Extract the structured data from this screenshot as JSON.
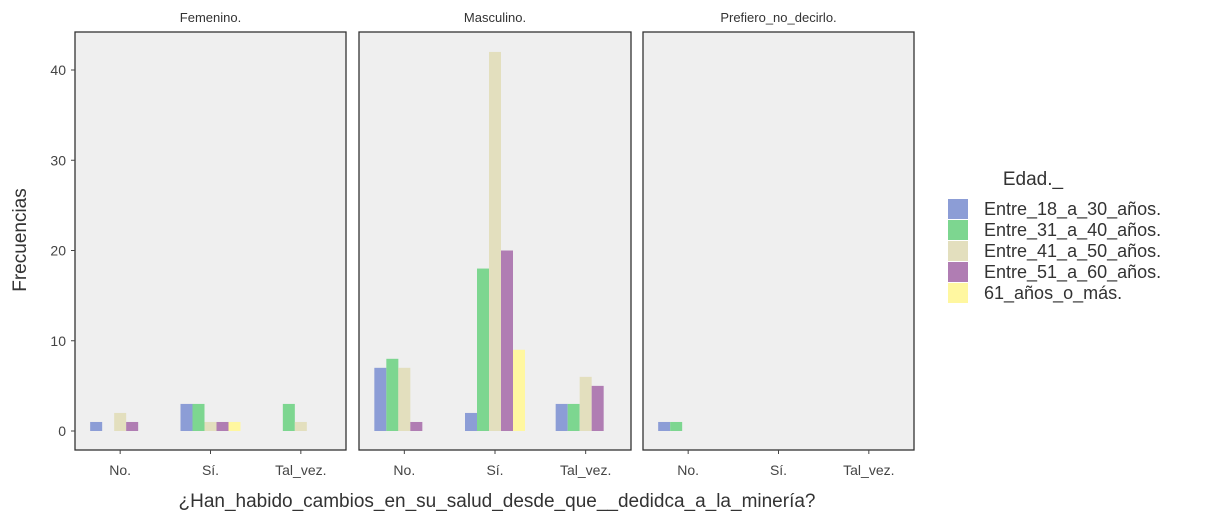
{
  "chart_data": {
    "type": "bar",
    "xlabel": "¿Han_habido_cambios_en_su_salud_desde_que__dedidca_a_la_minería?",
    "ylabel": "Frecuencias",
    "ylim": [
      0,
      44
    ],
    "yticks": [
      0,
      10,
      20,
      30,
      40
    ],
    "categories": [
      "No.",
      "Sí.",
      "Tal_vez."
    ],
    "legend": {
      "title": "Edad._",
      "position": "right"
    },
    "colors": [
      "#8C9DD6",
      "#7DD690",
      "#E3DFBE",
      "#B07DB3",
      "#FFF7A0"
    ],
    "panel_background": "#EFEFEF",
    "panels": [
      {
        "name": "Femenino.",
        "series": [
          {
            "name": "Entre_18_a_30_años.",
            "values": [
              1,
              3,
              0
            ]
          },
          {
            "name": "Entre_31_a_40_años.",
            "values": [
              0,
              3,
              3
            ]
          },
          {
            "name": "Entre_41_a_50_años.",
            "values": [
              2,
              1,
              1
            ]
          },
          {
            "name": "Entre_51_a_60_años.",
            "values": [
              1,
              1,
              0
            ]
          },
          {
            "name": "61_años_o_más.",
            "values": [
              0,
              1,
              0
            ]
          }
        ]
      },
      {
        "name": "Masculino.",
        "series": [
          {
            "name": "Entre_18_a_30_años.",
            "values": [
              7,
              2,
              3
            ]
          },
          {
            "name": "Entre_31_a_40_años.",
            "values": [
              8,
              18,
              3
            ]
          },
          {
            "name": "Entre_41_a_50_años.",
            "values": [
              7,
              42,
              6
            ]
          },
          {
            "name": "Entre_51_a_60_años.",
            "values": [
              1,
              20,
              5
            ]
          },
          {
            "name": "61_años_o_más.",
            "values": [
              0,
              9,
              0
            ]
          }
        ]
      },
      {
        "name": "Prefiero_no_decirlo.",
        "series": [
          {
            "name": "Entre_18_a_30_años.",
            "values": [
              1,
              0,
              0
            ]
          },
          {
            "name": "Entre_31_a_40_años.",
            "values": [
              1,
              0,
              0
            ]
          },
          {
            "name": "Entre_41_a_50_años.",
            "values": [
              0,
              0,
              0
            ]
          },
          {
            "name": "Entre_51_a_60_años.",
            "values": [
              0,
              0,
              0
            ]
          },
          {
            "name": "61_años_o_más.",
            "values": [
              0,
              0,
              0
            ]
          }
        ]
      }
    ]
  }
}
